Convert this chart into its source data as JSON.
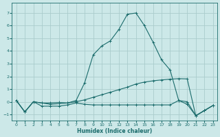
{
  "xlabel": "Humidex (Indice chaleur)",
  "xlim": [
    -0.5,
    23.5
  ],
  "ylim": [
    -1.5,
    7.8
  ],
  "yticks": [
    -1,
    0,
    1,
    2,
    3,
    4,
    5,
    6,
    7
  ],
  "xticks": [
    0,
    1,
    2,
    3,
    4,
    5,
    6,
    7,
    8,
    9,
    10,
    11,
    12,
    13,
    14,
    15,
    16,
    17,
    18,
    19,
    20,
    21,
    22,
    23
  ],
  "bg_color": "#cce8e8",
  "grid_color": "#aacccc",
  "line_color": "#1a6b6b",
  "line1_x": [
    0,
    1,
    2,
    3,
    4,
    5,
    6,
    7,
    8,
    9,
    10,
    11,
    12,
    13,
    14,
    15,
    16,
    17,
    18,
    19,
    20,
    21,
    22,
    23
  ],
  "line1_y": [
    0.1,
    -0.8,
    0.0,
    -0.35,
    -0.35,
    -0.35,
    -0.25,
    -0.1,
    -0.2,
    -0.25,
    -0.25,
    -0.25,
    -0.25,
    -0.25,
    -0.25,
    -0.25,
    -0.25,
    -0.25,
    -0.25,
    0.1,
    -0.2,
    -1.1,
    -0.7,
    -0.3
  ],
  "line2_x": [
    0,
    1,
    2,
    3,
    4,
    5,
    6,
    7,
    8,
    9,
    10,
    11,
    12,
    13,
    14,
    15,
    16,
    17,
    18,
    19,
    20,
    21,
    22,
    23
  ],
  "line2_y": [
    0.1,
    -0.8,
    0.0,
    -0.1,
    -0.1,
    -0.05,
    -0.1,
    0.0,
    0.15,
    0.35,
    0.55,
    0.75,
    0.95,
    1.15,
    1.4,
    1.55,
    1.65,
    1.72,
    1.78,
    1.82,
    1.8,
    -1.1,
    -0.7,
    -0.3
  ],
  "line3_x": [
    0,
    1,
    2,
    3,
    4,
    5,
    6,
    7,
    8,
    9,
    10,
    11,
    12,
    13,
    14,
    15,
    16,
    17,
    18,
    19,
    20,
    21,
    22,
    23
  ],
  "line3_y": [
    0.1,
    -0.8,
    0.0,
    -0.1,
    -0.2,
    -0.15,
    -0.1,
    0.1,
    1.5,
    3.7,
    4.4,
    4.8,
    5.7,
    6.9,
    7.0,
    6.0,
    4.7,
    3.3,
    2.5,
    0.1,
    0.0,
    -1.1,
    -0.7,
    -0.3
  ]
}
